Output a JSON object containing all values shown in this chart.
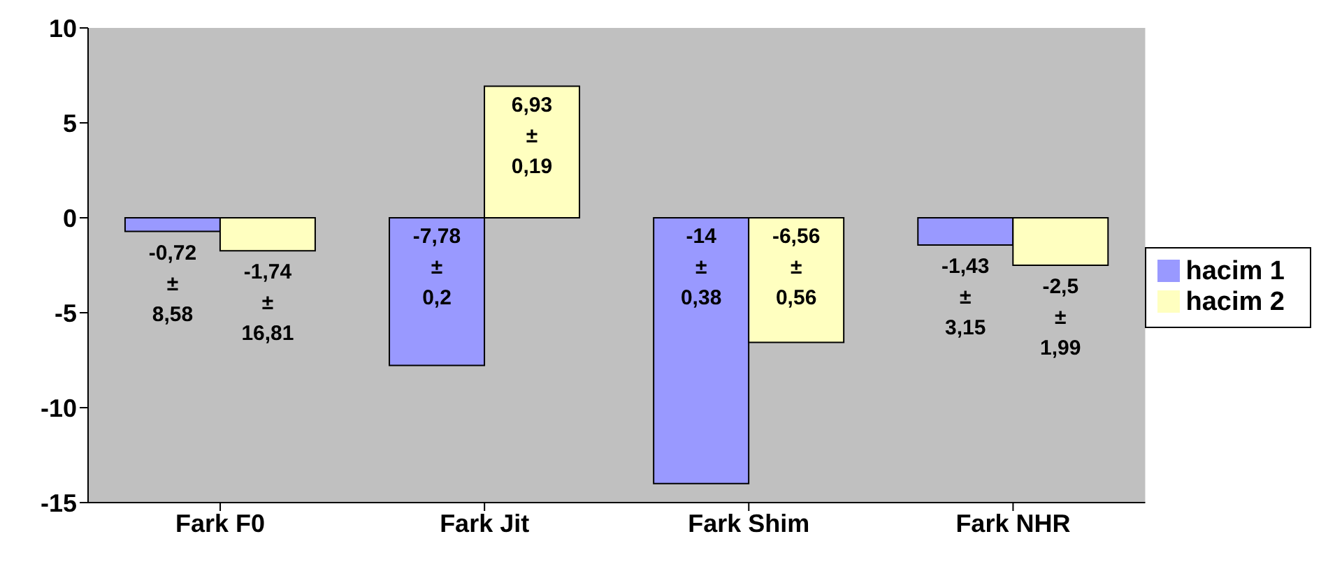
{
  "chart_data": {
    "type": "bar",
    "categories": [
      "Fark F0",
      "Fark Jit",
      "Fark Shim",
      "Fark NHR"
    ],
    "series": [
      {
        "name": "hacim 1",
        "color": "#9999ff",
        "values": [
          -0.72,
          -7.78,
          -14,
          -1.43
        ],
        "value_labels": [
          "-0,72 ± 8,58",
          "-7,78 ± 0,2",
          "-14 ± 0,38",
          "-1,43 ± 3,15"
        ]
      },
      {
        "name": "hacim 2",
        "color": "#ffffc0",
        "values": [
          -1.74,
          6.93,
          -6.56,
          -2.5
        ],
        "value_labels": [
          "-1,74 ± 16,81",
          "6,93 ± 0,19",
          "-6,56 ± 0,56",
          "-2,5 ± 1,99"
        ]
      }
    ],
    "ylim": [
      -15,
      10
    ],
    "yticks": [
      -15,
      -10,
      -5,
      0,
      5,
      10
    ],
    "grid": false,
    "legend": "right"
  }
}
